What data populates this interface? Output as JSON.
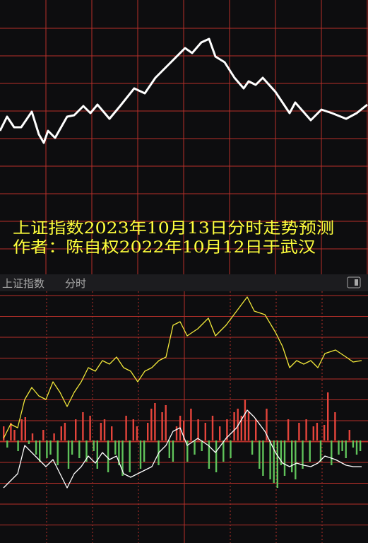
{
  "chart_data": [
    {
      "type": "line",
      "annotations": [
        "上证指数2023年10月13日分时走势预测",
        "作者：陈自权2022年10月12日于武汉"
      ],
      "xlim": [
        0,
        520
      ],
      "ylim": [
        0,
        388
      ],
      "series": [
        {
          "color": "#ffffff",
          "x": [
            0,
            10,
            20,
            30,
            45,
            55,
            62,
            68,
            78,
            95,
            105,
            118,
            128,
            138,
            155,
            170,
            190,
            205,
            220,
            240,
            262,
            272,
            285,
            296,
            305,
            318,
            332,
            345,
            352,
            362,
            372,
            390,
            410,
            418,
            440,
            455,
            470,
            490,
            505,
            520
          ],
          "values": [
            203,
            223,
            208,
            208,
            230,
            198,
            186,
            203,
            193,
            223,
            225,
            238,
            228,
            240,
            220,
            238,
            263,
            256,
            278,
            298,
            320,
            313,
            328,
            333,
            308,
            300,
            278,
            263,
            273,
            268,
            278,
            258,
            228,
            243,
            218,
            233,
            228,
            220,
            228,
            240
          ]
        }
      ]
    },
    {
      "type": "combo",
      "title": "上证指数",
      "subtitle": "分时",
      "xlim": [
        0,
        520
      ],
      "ylim": [
        -145,
        211
      ],
      "series": [
        {
          "type": "line",
          "color": "#f2e83a",
          "x": [
            5,
            15,
            25,
            35,
            45,
            55,
            65,
            75,
            85,
            95,
            105,
            115,
            125,
            135,
            145,
            155,
            165,
            175,
            185,
            195,
            205,
            215,
            225,
            235,
            245,
            255,
            265,
            280,
            295,
            305,
            320,
            335,
            350,
            360,
            375,
            390,
            400,
            410,
            420,
            430,
            440,
            450,
            460,
            475,
            490,
            500,
            512
          ],
          "values": [
            3,
            23,
            18,
            58,
            75,
            63,
            58,
            83,
            68,
            48,
            68,
            83,
            103,
            98,
            113,
            108,
            118,
            103,
            98,
            83,
            98,
            103,
            113,
            118,
            163,
            168,
            148,
            158,
            173,
            148,
            163,
            183,
            203,
            183,
            178,
            153,
            133,
            103,
            113,
            108,
            113,
            103,
            123,
            128,
            118,
            111,
            113
          ]
        },
        {
          "type": "line",
          "color": "#ffffff",
          "x": [
            5,
            15,
            25,
            35,
            45,
            55,
            65,
            75,
            85,
            95,
            105,
            115,
            125,
            135,
            145,
            155,
            165,
            175,
            185,
            195,
            205,
            215,
            225,
            235,
            245,
            255,
            265,
            280,
            295,
            305,
            320,
            335,
            350,
            360,
            375,
            390,
            400,
            410,
            420,
            430,
            440,
            450,
            460,
            475,
            490,
            500,
            512
          ],
          "values": [
            -67,
            -57,
            -47,
            -7,
            -17,
            -27,
            -37,
            -27,
            -47,
            -67,
            -47,
            -37,
            -22,
            -32,
            -17,
            -27,
            -22,
            -47,
            -52,
            -47,
            -42,
            -37,
            -17,
            -7,
            13,
            18,
            -7,
            3,
            -7,
            -17,
            3,
            18,
            43,
            33,
            13,
            -17,
            -32,
            -37,
            -32,
            -35,
            -37,
            -32,
            -22,
            -27,
            -35,
            -37,
            -37
          ]
        },
        {
          "type": "bar",
          "colors": [
            "#e5443b",
            "#5fc25a"
          ],
          "values": [
            20,
            -10,
            25,
            15,
            -15,
            30,
            33,
            -5,
            10,
            -20,
            -30,
            15,
            -25,
            -20,
            10,
            -35,
            20,
            25,
            -40,
            -20,
            30,
            -25,
            40,
            -30,
            35,
            -15,
            -40,
            25,
            30,
            -45,
            20,
            -20,
            -35,
            -50,
            35,
            -45,
            30,
            20,
            -40,
            -30,
            25,
            45,
            53,
            -35,
            40,
            50,
            -25,
            -30,
            20,
            35,
            28,
            -30,
            45,
            -20,
            30,
            -15,
            25,
            -40,
            35,
            -45,
            20,
            -30,
            30,
            -25,
            40,
            45,
            35,
            58,
            40,
            -20,
            30,
            -40,
            -50,
            45,
            -55,
            -60,
            -67,
            -35,
            -50,
            30,
            -45,
            -55,
            25,
            -40,
            30,
            -30,
            20,
            25,
            -30,
            22,
            68,
            -35,
            40,
            -20,
            -15,
            -25,
            15,
            -10,
            -20,
            -15
          ]
        }
      ]
    }
  ]
}
